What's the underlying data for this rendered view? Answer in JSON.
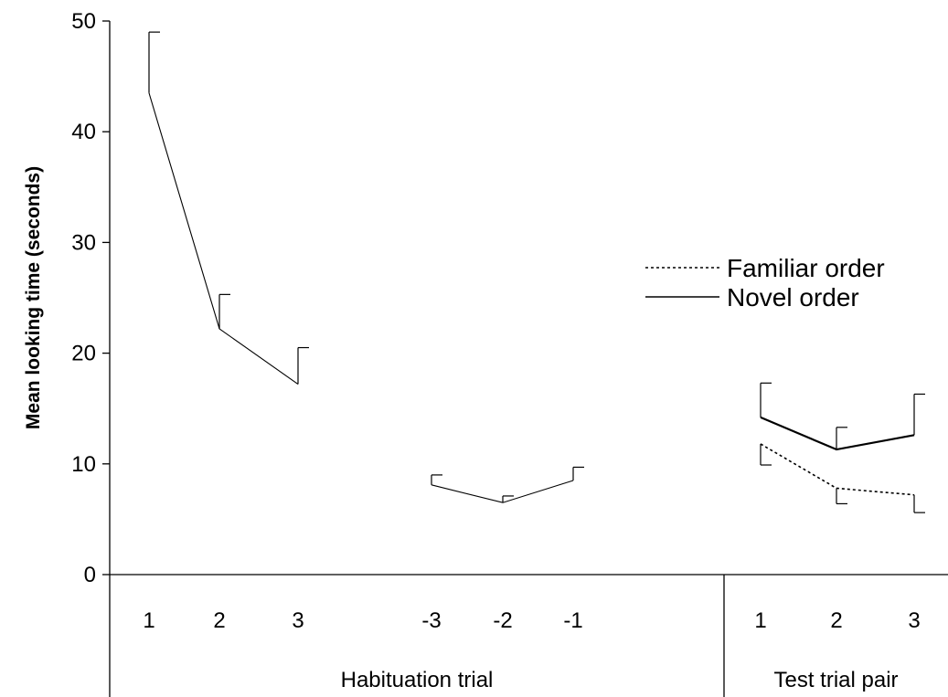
{
  "chart_data": {
    "type": "line",
    "title": "",
    "ylabel": "Mean looking time (seconds)",
    "ylim": [
      0,
      50
    ],
    "yticks": [
      0,
      10,
      20,
      30,
      40,
      50
    ],
    "groups": [
      {
        "label": "Habituation trial",
        "categories": [
          "1",
          "2",
          "3",
          "-3",
          "-2",
          "-1"
        ]
      },
      {
        "label": "Test trial pair",
        "categories": [
          "1",
          "2",
          "3"
        ]
      }
    ],
    "legend": {
      "position": "right",
      "entries": [
        {
          "name": "Familiar order",
          "style": "dotted"
        },
        {
          "name": "Novel order",
          "style": "solid"
        }
      ]
    },
    "grid": false,
    "series": [
      {
        "name": "",
        "group": 0,
        "segments": [
          [
            0,
            1,
            2
          ],
          [
            3,
            4,
            5
          ]
        ],
        "values": [
          43.5,
          22.2,
          17.2,
          8.1,
          6.5,
          8.5
        ],
        "error_upper": [
          49.0,
          25.3,
          20.5,
          9.0,
          7.1,
          9.7
        ],
        "error_dir": "up",
        "style": "thin"
      },
      {
        "name": "Familiar order",
        "group": 1,
        "segments": [
          [
            0,
            1,
            2
          ]
        ],
        "values": [
          11.8,
          7.8,
          7.2
        ],
        "error_lower": [
          9.9,
          6.4,
          5.6
        ],
        "error_dir": "down",
        "style": "dotted"
      },
      {
        "name": "Novel order",
        "group": 1,
        "segments": [
          [
            0,
            1,
            2
          ]
        ],
        "values": [
          14.2,
          11.3,
          12.6
        ],
        "error_upper": [
          17.3,
          13.3,
          16.3
        ],
        "error_dir": "up",
        "style": "solid"
      }
    ]
  }
}
